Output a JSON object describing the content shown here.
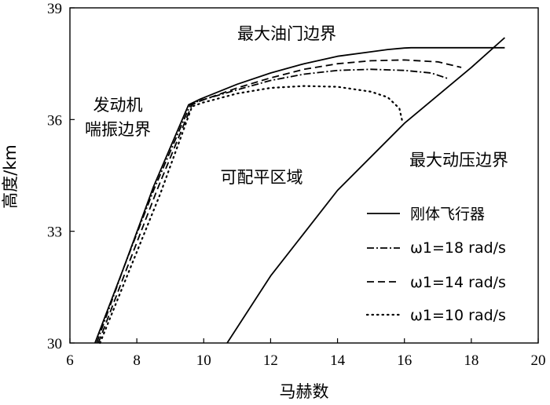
{
  "chart_data": {
    "type": "line",
    "xlabel": "马赫数",
    "ylabel": "高度/km",
    "xlim": [
      6,
      20
    ],
    "ylim": [
      30,
      39
    ],
    "xticks": [
      "6",
      "8",
      "10",
      "12",
      "14",
      "16",
      "18",
      "20"
    ],
    "yticks": [
      "30",
      "33",
      "36",
      "39"
    ],
    "annotations": {
      "throttle": "最大油门边界",
      "surge_line1": "发动机",
      "surge_line2": "喘振边界",
      "region": "可配平区域",
      "pressure": "最大动压边界"
    },
    "boundaries": [
      {
        "name": "最大动压边界",
        "x": [
          10.7,
          12.0,
          14.0,
          16.0,
          18.0,
          19.0
        ],
        "y": [
          30.0,
          31.8,
          34.1,
          35.9,
          37.4,
          38.2
        ]
      }
    ],
    "series": [
      {
        "name": "刚体飞行器",
        "style": "solid",
        "x": [
          6.75,
          7.6,
          8.5,
          9.55,
          9.9,
          11.0,
          12.0,
          13.0,
          14.0,
          15.0,
          15.5,
          16.0,
          16.2,
          19.0
        ],
        "y": [
          30.0,
          32.0,
          34.2,
          36.4,
          36.55,
          36.95,
          37.25,
          37.5,
          37.7,
          37.82,
          37.88,
          37.92,
          37.93,
          37.93
        ]
      },
      {
        "name": "ω1=18 rad/s",
        "style": "dashdot",
        "x": [
          6.8,
          7.6,
          8.5,
          9.6,
          9.85,
          11.0,
          12.0,
          13.0,
          14.0,
          15.0,
          16.0,
          16.8,
          17.3
        ],
        "y": [
          30.0,
          32.0,
          34.1,
          36.4,
          36.5,
          36.8,
          37.05,
          37.22,
          37.32,
          37.35,
          37.32,
          37.25,
          37.1
        ]
      },
      {
        "name": "ω1=14 rad/s",
        "style": "dashed",
        "x": [
          6.85,
          7.7,
          8.6,
          9.65,
          9.9,
          11.0,
          12.0,
          13.0,
          14.0,
          15.0,
          16.0,
          17.0,
          17.7
        ],
        "y": [
          30.0,
          32.0,
          34.1,
          36.4,
          36.5,
          36.85,
          37.12,
          37.35,
          37.5,
          37.58,
          37.6,
          37.55,
          37.4
        ]
      },
      {
        "name": "ω1=10 rad/s",
        "style": "dotted",
        "x": [
          6.9,
          7.8,
          8.7,
          9.65,
          9.95,
          10.5,
          11.0,
          12.0,
          13.0,
          14.0,
          15.0,
          15.5,
          15.85,
          15.95
        ],
        "y": [
          30.0,
          32.0,
          34.0,
          36.35,
          36.45,
          36.58,
          36.7,
          36.85,
          36.9,
          36.88,
          36.75,
          36.6,
          36.3,
          35.9
        ]
      }
    ]
  }
}
